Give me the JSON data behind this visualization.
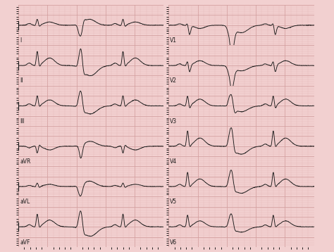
{
  "background_color": "#f2d0d0",
  "grid_major_color": "#d4a0a0",
  "grid_minor_color": "#e8bcbc",
  "ecg_color": "#1a1a1a",
  "label_color": "#1a1a1a",
  "figsize": [
    4.74,
    3.58
  ],
  "dpi": 100,
  "leads_left": [
    "I",
    "II",
    "III",
    "aVR",
    "aVL",
    "aVF"
  ],
  "leads_right": [
    "V1",
    "V2",
    "V3",
    "V4",
    "V5",
    "V6"
  ],
  "ecg_lw": 0.65,
  "n_rows": 6,
  "n_cols": 2
}
